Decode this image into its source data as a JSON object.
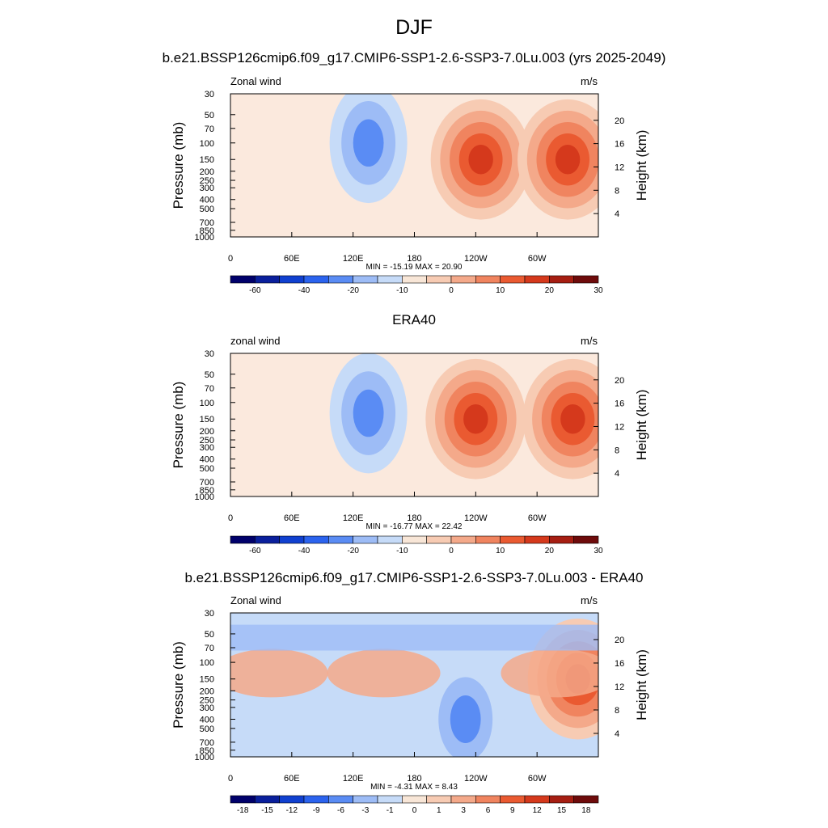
{
  "figure": {
    "title": "DJF"
  },
  "chart_data": [
    {
      "type": "heatmap",
      "title": "b.e21.BSSP126cmip6.f09_g17.CMIP6-SSP1-2.6-SSP3-7.0Lu.003 (yrs 2025-2049)",
      "variable_label": "Zonal wind",
      "units": "m/s",
      "ylabel": "Pressure (mb)",
      "ylabel_right": "Height (km)",
      "x_ticks": [
        "0",
        "60E",
        "120E",
        "180",
        "120W",
        "60W"
      ],
      "y_ticks": [
        "30",
        "50",
        "70",
        "100",
        "150",
        "200",
        "250",
        "300",
        "400",
        "500",
        "700",
        "850",
        "1000"
      ],
      "height_ticks": [
        "20",
        "16",
        "12",
        "8",
        "4"
      ],
      "min_max_label": "MIN = -15.19  MAX =  20.90",
      "min": -15.19,
      "max": 20.9,
      "colorbar_ticks": [
        "-60",
        "-40",
        "-20",
        "-10",
        "0",
        "10",
        "20",
        "30"
      ],
      "features": [
        {
          "kind": "max",
          "lon": 245,
          "p": 150,
          "value": 20.9
        },
        {
          "kind": "max",
          "lon": 330,
          "p": 150,
          "value": 17
        },
        {
          "kind": "min",
          "lon": 135,
          "p": 100,
          "value": -15.19
        }
      ]
    },
    {
      "type": "heatmap",
      "title": "ERA40",
      "variable_label": "zonal wind",
      "units": "m/s",
      "ylabel": "Pressure (mb)",
      "ylabel_right": "Height (km)",
      "x_ticks": [
        "0",
        "60E",
        "120E",
        "180",
        "120W",
        "60W"
      ],
      "y_ticks": [
        "30",
        "50",
        "70",
        "100",
        "150",
        "200",
        "250",
        "300",
        "400",
        "500",
        "700",
        "850",
        "1000"
      ],
      "height_ticks": [
        "20",
        "16",
        "12",
        "8",
        "4"
      ],
      "min_max_label": "MIN = -16.77  MAX =  22.42",
      "min": -16.77,
      "max": 22.42,
      "colorbar_ticks": [
        "-60",
        "-40",
        "-20",
        "-10",
        "0",
        "10",
        "20",
        "30"
      ],
      "features": [
        {
          "kind": "max",
          "lon": 240,
          "p": 150,
          "value": 22.42
        },
        {
          "kind": "max",
          "lon": 335,
          "p": 150,
          "value": 15
        },
        {
          "kind": "min",
          "lon": 135,
          "p": 130,
          "value": -16.77
        }
      ]
    },
    {
      "type": "heatmap",
      "title": "b.e21.BSSP126cmip6.f09_g17.CMIP6-SSP1-2.6-SSP3-7.0Lu.003 - ERA40",
      "variable_label": "Zonal wind",
      "units": "m/s",
      "ylabel": "Pressure (mb)",
      "ylabel_right": "Height (km)",
      "x_ticks": [
        "0",
        "60E",
        "120E",
        "180",
        "120W",
        "60W"
      ],
      "y_ticks": [
        "30",
        "50",
        "70",
        "100",
        "150",
        "200",
        "250",
        "300",
        "400",
        "500",
        "700",
        "850",
        "1000"
      ],
      "height_ticks": [
        "20",
        "16",
        "12",
        "8",
        "4"
      ],
      "min_max_label": "MIN =  -4.31  MAX =   8.43",
      "min": -4.31,
      "max": 8.43,
      "colorbar_ticks": [
        "-18",
        "-15",
        "-12",
        "-9",
        "-6",
        "-3",
        "-1",
        "0",
        "1",
        "3",
        "6",
        "9",
        "12",
        "15",
        "18"
      ],
      "features": [
        {
          "kind": "max",
          "lon": 340,
          "p": 150,
          "value": 8.43
        },
        {
          "kind": "min",
          "lon": 230,
          "p": 400,
          "value": -4.31
        }
      ]
    }
  ],
  "colormap": [
    "#00006b",
    "#0a1f9c",
    "#1040d0",
    "#2b63ee",
    "#5a8cf4",
    "#9dbcf6",
    "#c6dbf8",
    "#f8e6d7",
    "#f7cbb3",
    "#f4a98a",
    "#f0845f",
    "#ea5a31",
    "#d5391c",
    "#a61e12",
    "#6e0b0b"
  ]
}
